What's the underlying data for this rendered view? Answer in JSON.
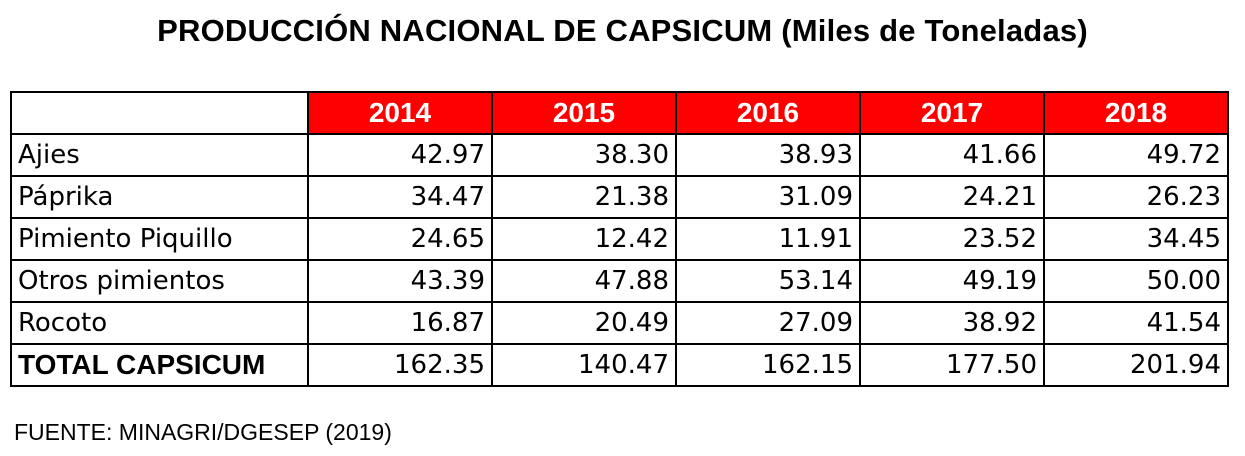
{
  "title": "PRODUCCIÓN NACIONAL DE CAPSICUM (Miles de Toneladas)",
  "source": "FUENTE: MINAGRI/DGESEP (2019)",
  "colors": {
    "header_bg": "#ff0000",
    "header_text": "#ffffff"
  },
  "chart_data": {
    "type": "table",
    "title": "PRODUCCIÓN NACIONAL DE CAPSICUM (Miles de Toneladas)",
    "columns": [
      "2014",
      "2015",
      "2016",
      "2017",
      "2018"
    ],
    "rows": [
      {
        "label": "Ajies",
        "values": [
          "42.97",
          "38.30",
          "38.93",
          "41.66",
          "49.72"
        ]
      },
      {
        "label": "Páprika",
        "values": [
          "34.47",
          "21.38",
          "31.09",
          "24.21",
          "26.23"
        ]
      },
      {
        "label": "Pimiento Piquillo",
        "values": [
          "24.65",
          "12.42",
          "11.91",
          "23.52",
          "34.45"
        ]
      },
      {
        "label": "Otros pimientos",
        "values": [
          "43.39",
          "47.88",
          "53.14",
          "49.19",
          "50.00"
        ]
      },
      {
        "label": "Rocoto",
        "values": [
          "16.87",
          "20.49",
          "27.09",
          "38.92",
          "41.54"
        ]
      },
      {
        "label": "TOTAL CAPSICUM",
        "values": [
          "162.35",
          "140.47",
          "162.15",
          "177.50",
          "201.94"
        ]
      }
    ],
    "source": "FUENTE: MINAGRI/DGESEP (2019)"
  }
}
